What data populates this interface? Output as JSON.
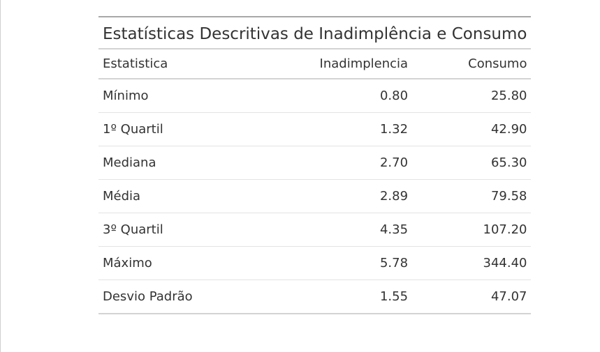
{
  "table": {
    "title": "Estatísticas Descritivas de Inadimplência e Consumo",
    "headers": {
      "statistic": "Estatistica",
      "default": "Inadimplencia",
      "consumption": "Consumo"
    },
    "rows": [
      {
        "statistic": "Mínimo",
        "default": "0.80",
        "consumption": "25.80"
      },
      {
        "statistic": "1º Quartil",
        "default": "1.32",
        "consumption": "42.90"
      },
      {
        "statistic": "Mediana",
        "default": "2.70",
        "consumption": "65.30"
      },
      {
        "statistic": "Média",
        "default": "2.89",
        "consumption": "79.58"
      },
      {
        "statistic": "3º Quartil",
        "default": "4.35",
        "consumption": "107.20"
      },
      {
        "statistic": "Máximo",
        "default": "5.78",
        "consumption": "344.40"
      },
      {
        "statistic": "Desvio Padrão",
        "default": "1.55",
        "consumption": "47.07"
      }
    ]
  }
}
